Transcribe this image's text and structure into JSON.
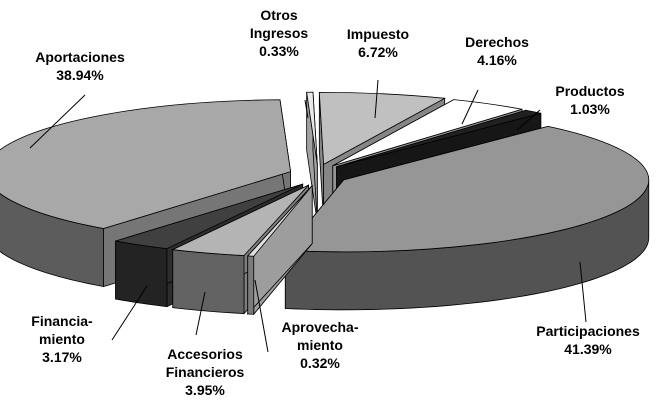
{
  "chart_data": {
    "type": "pie3d",
    "categories": [
      "Otros\nIngresos",
      "Impuesto",
      "Derechos",
      "Productos",
      "Participaciones",
      "Aprovecha-\nmiento",
      "Accesorios\nFinancieros",
      "Financia-\nmiento",
      "Aportaciones"
    ],
    "values": [
      0.33,
      6.72,
      4.16,
      1.03,
      41.39,
      0.32,
      3.95,
      3.17,
      38.94
    ],
    "value_labels": [
      "0.33%",
      "6.72%",
      "4.16%",
      "1.03%",
      "41.39%",
      "0.32%",
      "3.95%",
      "3.17%",
      "38.94%"
    ],
    "colors": [
      "#e8e8e8",
      "#c0c0c0",
      "#ffffff",
      "#202020",
      "#969696",
      "#e0e0e0",
      "#b4b4b4",
      "#404040",
      "#a8a8a8"
    ]
  }
}
